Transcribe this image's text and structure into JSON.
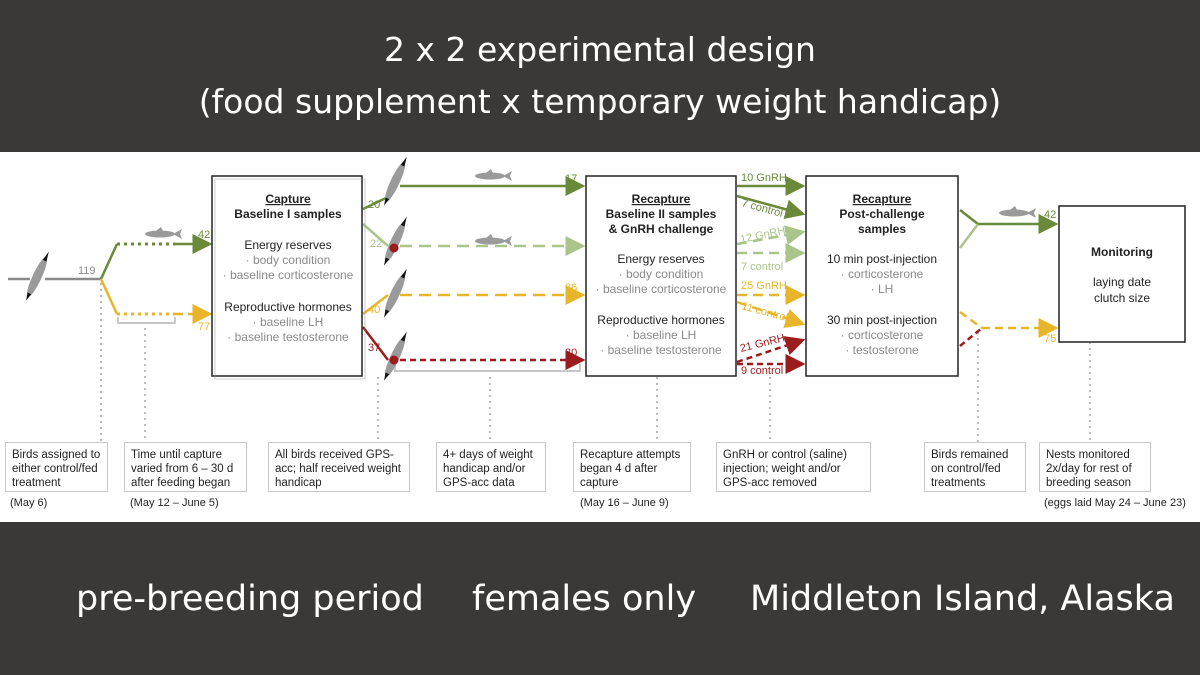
{
  "header": {
    "line1": "2 x 2 experimental design",
    "line2": "(food supplement x temporary weight handicap)"
  },
  "footer": {
    "left": "pre-breeding period",
    "middle": "females only",
    "right": "Middleton Island, Alaska"
  },
  "colors": {
    "banner": "#3a3938",
    "control_handicap_free": "#6a8a3a",
    "fed_handicap_free": "#aac48a",
    "control_handicapped": "#e8b52a",
    "fed_handicapped": "#9b1c1c",
    "neutral": "#8a8a8a"
  },
  "icons": [
    "bird-icon",
    "fish-icon"
  ],
  "counts": {
    "start": "119",
    "fed_branch": "42",
    "control_branch": "77",
    "green_upper": "20",
    "light_green": "22",
    "yellow": "40",
    "red": "37",
    "green_recap": "17",
    "light_green_recap": "19",
    "yellow_recap": "36",
    "red_recap": "30",
    "monitor_fed": "42",
    "monitor_control": "75"
  },
  "treatments": {
    "gnrh_green": "10 GnRH",
    "control_green": "7 control",
    "gnrh_light": "12 GnRH",
    "control_light": "7 control",
    "gnrh_yellow": "25 GnRH",
    "control_yellow": "11 control",
    "gnrh_red": "21 GnRH",
    "control_red": "9 control"
  },
  "boxes": {
    "capture": {
      "title": "Capture",
      "subtitle": "Baseline I samples",
      "energy_head": "Energy reserves",
      "energy_1": "· body condition",
      "energy_2": "· baseline corticosterone",
      "repro_head": "Reproductive hormones",
      "repro_1": "· baseline LH",
      "repro_2": "· baseline testosterone"
    },
    "recapture1": {
      "title": "Recapture",
      "subtitle": "Baseline II samples",
      "subtitle2": "& GnRH challenge",
      "energy_head": "Energy reserves",
      "energy_1": "· body condition",
      "energy_2": "· baseline corticosterone",
      "repro_head": "Reproductive hormones",
      "repro_1": "· baseline LH",
      "repro_2": "· baseline testosterone"
    },
    "recapture2": {
      "title": "Recapture",
      "subtitle": "Post-challenge",
      "subtitle2": "samples",
      "p10_head": "10 min post-injection",
      "p10_1": "· corticosterone",
      "p10_2": "· LH",
      "p30_head": "30 min post-injection",
      "p30_1": "· corticosterone",
      "p30_2": "· testosterone"
    },
    "monitoring": {
      "title": "Monitoring",
      "line1": "laying date",
      "line2": "clutch size"
    }
  },
  "notes": [
    {
      "text": "Birds assigned to either control/fed treatment",
      "date": "(May 6)"
    },
    {
      "text": "Time until capture varied from 6 – 30 d after feeding began",
      "date": "(May 12 – June 5)"
    },
    {
      "text": "All birds received GPS-acc; half received weight handicap",
      "date": ""
    },
    {
      "text": "4+ days of weight handicap and/or GPS-acc data",
      "date": ""
    },
    {
      "text": "Recapture attempts began 4 d after capture",
      "date": "(May 16 – June 9)"
    },
    {
      "text": "GnRH or control (saline) injection; weight and/or GPS-acc removed",
      "date": ""
    },
    {
      "text": "Birds remained on control/fed treatments",
      "date": ""
    },
    {
      "text": "Nests monitored 2x/day for rest of breeding season",
      "date": "(eggs laid May 24 – June 23)"
    }
  ]
}
